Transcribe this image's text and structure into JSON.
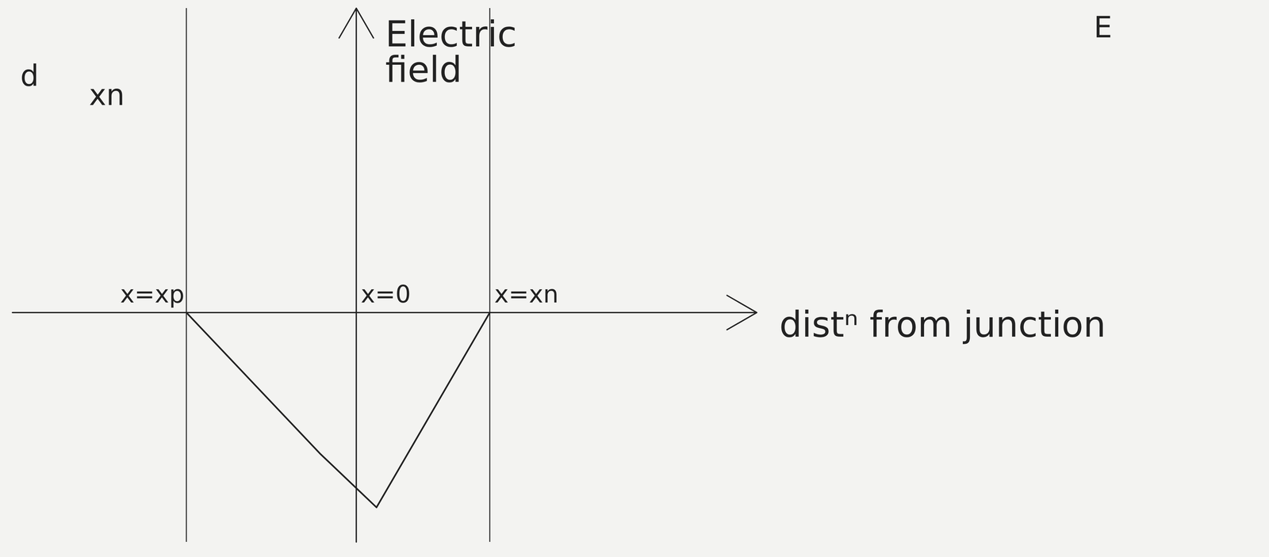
{
  "chart_data": {
    "type": "line",
    "x_label": "distⁿ from junction",
    "y_label": "Electric field",
    "x": [
      -2.1,
      -0.45,
      0.25,
      1.65
    ],
    "values": [
      0,
      -1.75,
      -2.42,
      0
    ],
    "xlim": [
      -4.25,
      4.95
    ],
    "ylim": [
      -2.85,
      3.78
    ],
    "xticks": [
      {
        "value": -2.1,
        "label": "x=xp"
      },
      {
        "value": 0,
        "label": "x=0"
      },
      {
        "value": 1.65,
        "label": "x=xn"
      }
    ],
    "yticks": [],
    "tick_labels": "x",
    "color": "#222222",
    "annotations": [
      "d",
      "xn",
      "E"
    ]
  }
}
